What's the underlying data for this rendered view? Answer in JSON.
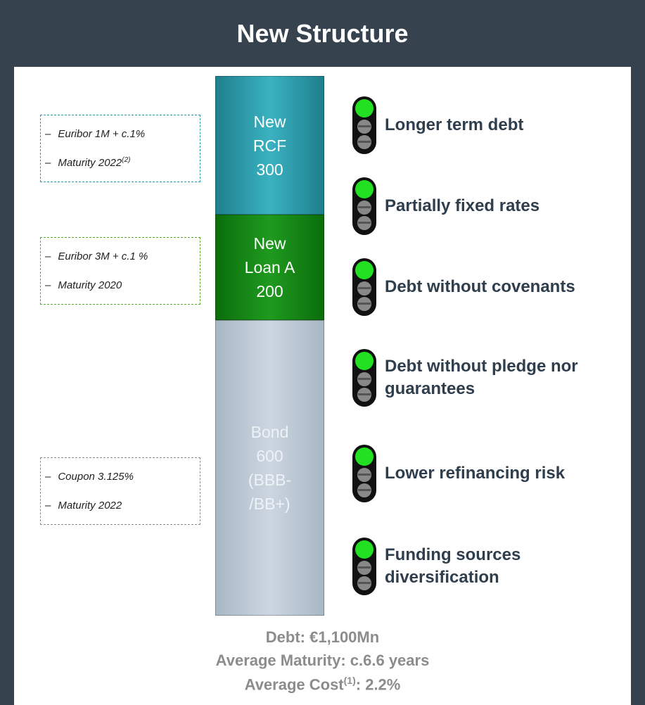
{
  "header": {
    "title": "New Structure"
  },
  "blocks": [
    {
      "lines": [
        "New",
        "RCF",
        "300"
      ]
    },
    {
      "lines": [
        "New",
        "Loan A",
        "200"
      ]
    },
    {
      "lines": [
        "Bond",
        "600",
        "(BBB-",
        "/BB+)"
      ]
    }
  ],
  "notes": [
    {
      "items": [
        {
          "text": "Euribor 1M + c.1%"
        },
        {
          "text": "Maturity 2022",
          "sup": "(2)"
        }
      ]
    },
    {
      "items": [
        {
          "text": "Euribor 3M + c.1 %"
        },
        {
          "text": "Maturity 2020"
        }
      ]
    },
    {
      "items": [
        {
          "text": "Coupon 3.125%"
        },
        {
          "text": "Maturity 2022"
        }
      ]
    }
  ],
  "bullet": "–",
  "benefits": [
    "Longer term debt",
    "Partially fixed rates",
    "Debt without covenants",
    "Debt without pledge nor guarantees",
    "Lower refinancing risk",
    "Funding sources diversification"
  ],
  "footer": {
    "debt": "Debt: €1,100Mn",
    "maturity": "Average Maturity: c.6.6 years",
    "cost": {
      "label": "Average Cost",
      "sup": "(1)",
      "value": ": 2.2%"
    }
  }
}
